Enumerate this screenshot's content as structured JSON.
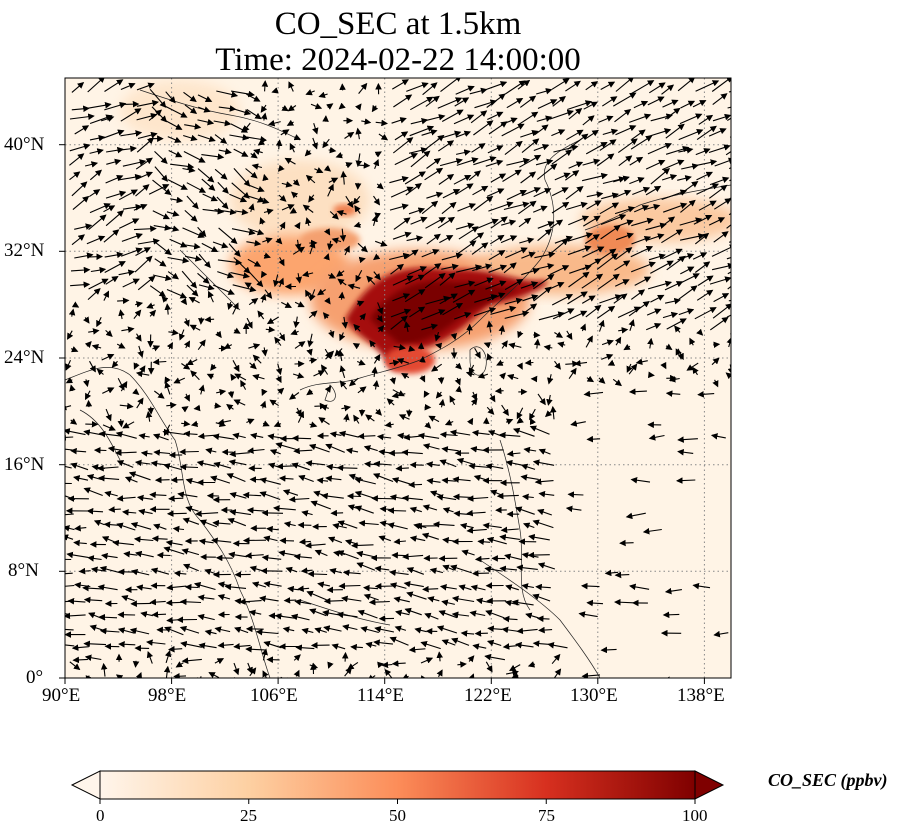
{
  "title_line1": "CO_SEC at 1.5km",
  "title_line2": "Time: 2024-02-22 14:00:00",
  "map": {
    "lon_range": [
      90,
      140
    ],
    "lat_range": [
      0,
      45
    ],
    "x_ticks": [
      "90°E",
      "98°E",
      "106°E",
      "114°E",
      "122°E",
      "130°E",
      "138°E"
    ],
    "y_ticks": [
      "0°",
      "8°N",
      "16°N",
      "24°N",
      "32°N",
      "40°N"
    ],
    "gridlines": "dotted",
    "plume_color_scale": [
      "#fff5eb",
      "#fdd0a2",
      "#fd8d3c",
      "#d94801",
      "#8c0000",
      "#7f0000"
    ]
  },
  "colorbar": {
    "title": "CO_SEC (ppbv)",
    "tick_labels": [
      "0",
      "25",
      "50",
      "75",
      "100"
    ],
    "range": [
      0,
      100
    ],
    "extend": "both",
    "colormap": "OrRd"
  }
}
